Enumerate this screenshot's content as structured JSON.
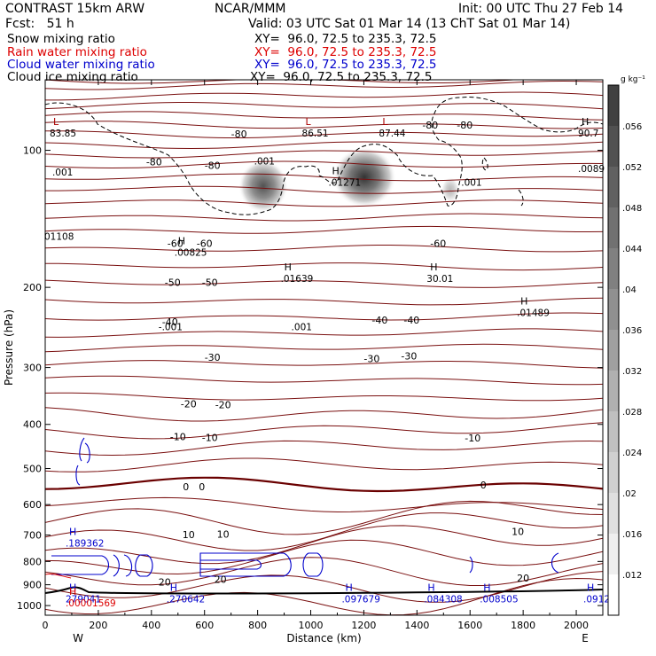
{
  "header": {
    "title": "CONTRAST 15km ARW",
    "center": "NCAR/MMM",
    "init": "Init: 00 UTC Thu 27 Feb 14",
    "fcst": "Fcst:   51 h",
    "valid": "Valid: 03 UTC Sat 01 Mar 14 (13 ChT Sat 01 Mar 14)"
  },
  "fields": [
    {
      "name": "Snow mixing ratio",
      "xy": "XY=  96.0, 72.5 to 235.3, 72.5",
      "color": "#000000"
    },
    {
      "name": "Rain water mixing ratio",
      "xy": "XY=  96.0, 72.5 to 235.3, 72.5",
      "color": "#dd0000"
    },
    {
      "name": "Cloud water mixing ratio",
      "xy": "XY=  96.0, 72.5 to 235.3, 72.5",
      "color": "#0000cc"
    },
    {
      "name": "Cloud ice mixing ratio",
      "xy": "XY=  96.0, 72.5 to 235.3, 72.5",
      "color": "#000000"
    }
  ],
  "chart_data": {
    "type": "contour",
    "xlabel": "Distance (km)",
    "ylabel": "Pressure (hPa)",
    "xlim": [
      0,
      2100
    ],
    "x_ticks": [
      "0",
      "200",
      "400",
      "600",
      "800",
      "1000",
      "1200",
      "1400",
      "1600",
      "1800",
      "2000"
    ],
    "y_ticks": [
      "100",
      "200",
      "300",
      "400",
      "500",
      "600",
      "700",
      "800",
      "900",
      "1000"
    ],
    "y_scale": "log",
    "ylim": [
      1050,
      70
    ],
    "west_label": "W",
    "east_label": "E",
    "colorbar": {
      "unit": "g kg⁻¹",
      "ticks": [
        ".012",
        ".016",
        ".02",
        ".024",
        ".028",
        ".032",
        ".036",
        ".04",
        ".044",
        ".048",
        ".052",
        ".056"
      ]
    },
    "temperature_contour_labels": [
      {
        "text": "-80",
        "x": 730,
        "p": 92
      },
      {
        "text": "-80",
        "x": 1450,
        "p": 88
      },
      {
        "text": "-80",
        "x": 1580,
        "p": 88
      },
      {
        "text": "-80",
        "x": 410,
        "p": 106
      },
      {
        "text": "-80",
        "x": 630,
        "p": 108
      },
      {
        "text": "-60",
        "x": 490,
        "p": 160
      },
      {
        "text": "-60",
        "x": 600,
        "p": 160
      },
      {
        "text": "-60",
        "x": 1480,
        "p": 160
      },
      {
        "text": "-50",
        "x": 480,
        "p": 195
      },
      {
        "text": "-50",
        "x": 620,
        "p": 195
      },
      {
        "text": "-40",
        "x": 470,
        "p": 238
      },
      {
        "text": "-40",
        "x": 1260,
        "p": 236
      },
      {
        "text": "-40",
        "x": 1380,
        "p": 236
      },
      {
        "text": "-30",
        "x": 630,
        "p": 285
      },
      {
        "text": "-30",
        "x": 1230,
        "p": 287
      },
      {
        "text": "-30",
        "x": 1370,
        "p": 283
      },
      {
        "text": "-20",
        "x": 540,
        "p": 360
      },
      {
        "text": "-20",
        "x": 670,
        "p": 362
      },
      {
        "text": "-10",
        "x": 500,
        "p": 425
      },
      {
        "text": "-10",
        "x": 620,
        "p": 427
      },
      {
        "text": "-10",
        "x": 1610,
        "p": 428
      },
      {
        "text": "0",
        "x": 530,
        "p": 548
      },
      {
        "text": "0",
        "x": 590,
        "p": 548
      },
      {
        "text": "0",
        "x": 1650,
        "p": 543
      },
      {
        "text": "10",
        "x": 540,
        "p": 698
      },
      {
        "text": "10",
        "x": 670,
        "p": 697
      },
      {
        "text": "10",
        "x": 1780,
        "p": 688
      },
      {
        "text": "20",
        "x": 450,
        "p": 887
      },
      {
        "text": "20",
        "x": 660,
        "p": 876
      },
      {
        "text": "20",
        "x": 1800,
        "p": 870
      }
    ],
    "extrema_labels": [
      {
        "kind": "L",
        "value": "83.85",
        "x": 30,
        "p": 92,
        "color": "#000000"
      },
      {
        "kind": "",
        "value": ".001",
        "x": 40,
        "p": 112,
        "color": "#000000"
      },
      {
        "kind": "",
        "value": ".001",
        "x": 800,
        "p": 106,
        "color": "#000000"
      },
      {
        "kind": "L",
        "value": "86.51",
        "x": 980,
        "p": 92,
        "color": "#000000"
      },
      {
        "kind": "L",
        "value": "87.44",
        "x": 1270,
        "p": 92,
        "color": "#000000"
      },
      {
        "kind": "H",
        "value": "90.7",
        "x": 2020,
        "p": 92,
        "color": "#000000"
      },
      {
        "kind": "",
        "value": ".0089",
        "x": 2020,
        "p": 110,
        "color": "#000000"
      },
      {
        "kind": "H",
        "value": ".01271",
        "x": 1080,
        "p": 118,
        "color": "#000000"
      },
      {
        "kind": "",
        "value": ".001",
        "x": 1580,
        "p": 118,
        "color": "#000000"
      },
      {
        "kind": "",
        "value": "01108",
        "x": 10,
        "p": 155,
        "color": "#000000"
      },
      {
        "kind": "H",
        "value": ".00825",
        "x": 500,
        "p": 168,
        "color": "#000000"
      },
      {
        "kind": "H",
        "value": ".01639",
        "x": 900,
        "p": 192,
        "color": "#000000"
      },
      {
        "kind": "H",
        "value": "30.01",
        "x": 1450,
        "p": 192,
        "color": "#000000"
      },
      {
        "kind": "H",
        "value": ".01489",
        "x": 1790,
        "p": 228,
        "color": "#000000"
      },
      {
        "kind": "",
        "value": "-.001",
        "x": 440,
        "p": 245,
        "color": "#000000"
      },
      {
        "kind": "",
        "value": ".001",
        "x": 940,
        "p": 245,
        "color": "#000000"
      },
      {
        "kind": "H",
        "value": ".189362",
        "x": 90,
        "p": 732,
        "color": "#0000cc"
      },
      {
        "kind": "H",
        "value": "279041",
        "x": 90,
        "p": 970,
        "color": "#0000cc"
      },
      {
        "kind": "H",
        "value": ".00001569",
        "x": 90,
        "p": 990,
        "color": "#dd0000"
      },
      {
        "kind": "H",
        "value": ".270642",
        "x": 470,
        "p": 970,
        "color": "#0000cc"
      },
      {
        "kind": "H",
        "value": ".097679",
        "x": 1130,
        "p": 970,
        "color": "#0000cc"
      },
      {
        "kind": "H",
        "value": ".084308",
        "x": 1440,
        "p": 970,
        "color": "#0000cc"
      },
      {
        "kind": "H",
        "value": ".008505",
        "x": 1650,
        "p": 970,
        "color": "#0000cc"
      },
      {
        "kind": "H",
        "value": ".0912",
        "x": 2040,
        "p": 970,
        "color": "#0000cc"
      }
    ]
  }
}
